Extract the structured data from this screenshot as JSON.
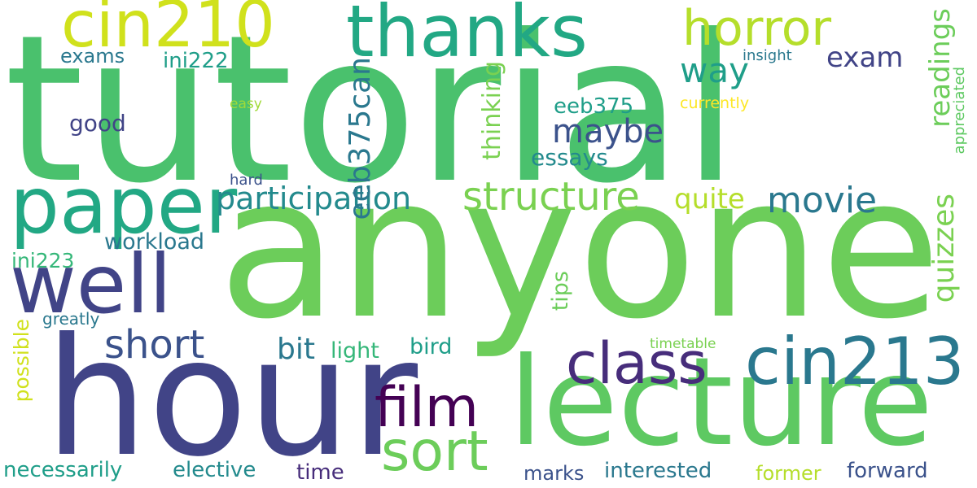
{
  "words": [
    {
      "key": "tutorial",
      "text": "tutorial",
      "color": "#4ac16d"
    },
    {
      "key": "anyone",
      "text": "anyone",
      "color": "#6ccd5a"
    },
    {
      "key": "hour",
      "text": "hour",
      "color": "#414487"
    },
    {
      "key": "lecture",
      "text": "lecture",
      "color": "#5ec962"
    },
    {
      "key": "paper",
      "text": "paper",
      "color": "#22a884"
    },
    {
      "key": "well",
      "text": "well",
      "color": "#414487"
    },
    {
      "key": "cin213",
      "text": "cin213",
      "color": "#2a788e"
    },
    {
      "key": "cin210",
      "text": "cin210",
      "color": "#d0e11c"
    },
    {
      "key": "thanks",
      "text": "thanks",
      "color": "#22a884"
    },
    {
      "key": "horror",
      "text": "horror",
      "color": "#b5de2b"
    },
    {
      "key": "class",
      "text": "class",
      "color": "#472d7b"
    },
    {
      "key": "film",
      "text": "film",
      "color": "#440154"
    },
    {
      "key": "sort",
      "text": "sort",
      "color": "#6ccd5a"
    },
    {
      "key": "structure",
      "text": "structure",
      "color": "#7ad151"
    },
    {
      "key": "participation",
      "text": "participation",
      "color": "#238a8d"
    },
    {
      "key": "movie",
      "text": "movie",
      "color": "#2a788e"
    },
    {
      "key": "short",
      "text": "short",
      "color": "#3b528b"
    },
    {
      "key": "maybe",
      "text": "maybe",
      "color": "#3b528b"
    },
    {
      "key": "way",
      "text": "way",
      "color": "#1f9e89"
    },
    {
      "key": "exam",
      "text": "exam",
      "color": "#414487"
    },
    {
      "key": "readings",
      "text": "readings",
      "color": "#6ccd5a"
    },
    {
      "key": "quizzes",
      "text": "quizzes",
      "color": "#7ad151"
    },
    {
      "key": "quite",
      "text": "quite",
      "color": "#b5de2b"
    },
    {
      "key": "exams",
      "text": "exams",
      "color": "#2a788e"
    },
    {
      "key": "ini222",
      "text": "ini222",
      "color": "#1f9e89"
    },
    {
      "key": "good",
      "text": "good",
      "color": "#414487"
    },
    {
      "key": "eeb375can",
      "text": "eeb375can",
      "color": "#2a788e"
    },
    {
      "key": "eeb375",
      "text": "eeb375",
      "color": "#1f9e89"
    },
    {
      "key": "thinking",
      "text": "thinking",
      "color": "#7ad151"
    },
    {
      "key": "essays",
      "text": "essays",
      "color": "#238a8d"
    },
    {
      "key": "insight",
      "text": "insight",
      "color": "#2a788e"
    },
    {
      "key": "easy",
      "text": "easy",
      "color": "#a0da39"
    },
    {
      "key": "currently",
      "text": "currently",
      "color": "#fde725"
    },
    {
      "key": "appreciated",
      "text": "appreciated",
      "color": "#5ec962"
    },
    {
      "key": "hard",
      "text": "hard",
      "color": "#3b528b"
    },
    {
      "key": "workload",
      "text": "workload",
      "color": "#2a788e"
    },
    {
      "key": "ini223",
      "text": "ini223",
      "color": "#35b779"
    },
    {
      "key": "greatly",
      "text": "greatly",
      "color": "#2a788e"
    },
    {
      "key": "possible",
      "text": "possible",
      "color": "#d0e11c"
    },
    {
      "key": "tips",
      "text": "tips",
      "color": "#6ccd5a"
    },
    {
      "key": "bit",
      "text": "bit",
      "color": "#2a788e"
    },
    {
      "key": "light",
      "text": "light",
      "color": "#35b779"
    },
    {
      "key": "bird",
      "text": "bird",
      "color": "#1f9e89"
    },
    {
      "key": "timetable",
      "text": "timetable",
      "color": "#7ad151"
    },
    {
      "key": "necessarily",
      "text": "necessarily",
      "color": "#1f9e89"
    },
    {
      "key": "elective",
      "text": "elective",
      "color": "#238a8d"
    },
    {
      "key": "time",
      "text": "time",
      "color": "#472d7b"
    },
    {
      "key": "marks",
      "text": "marks",
      "color": "#3b528b"
    },
    {
      "key": "interested",
      "text": "interested",
      "color": "#2a788e"
    },
    {
      "key": "former",
      "text": "former",
      "color": "#b5de2b"
    },
    {
      "key": "forward",
      "text": "forward",
      "color": "#3b528b"
    }
  ]
}
